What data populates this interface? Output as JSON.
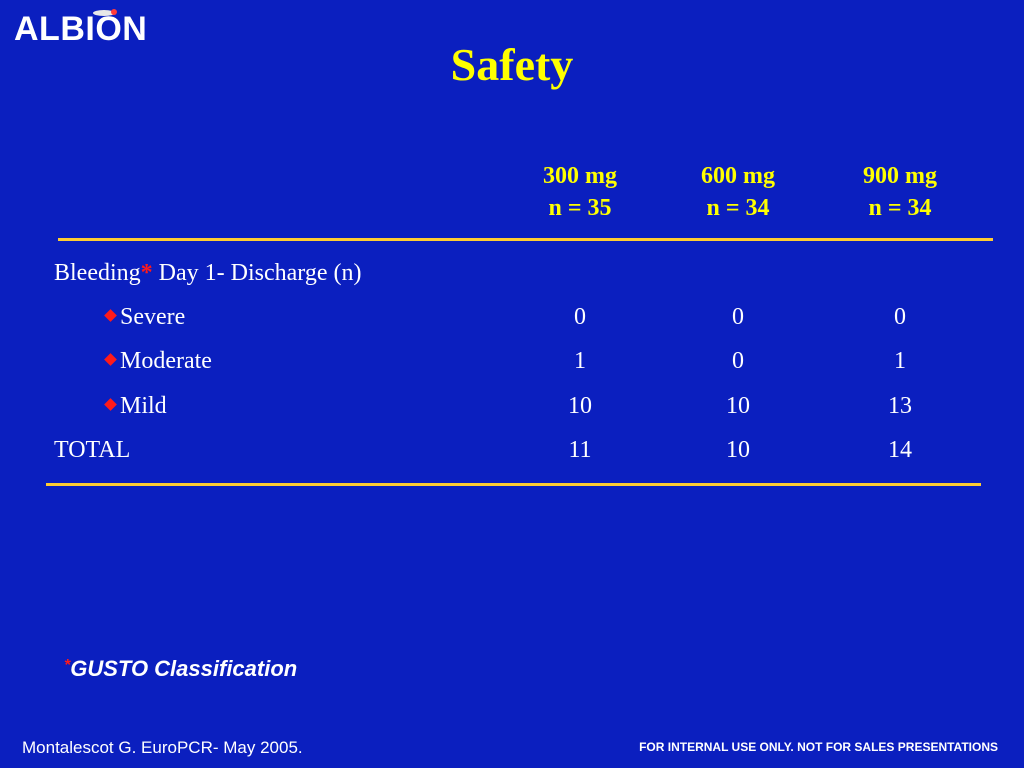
{
  "brand": {
    "logo_text": "ALBION"
  },
  "slide": {
    "title": "Safety"
  },
  "table": {
    "columns": [
      {
        "dose": "300 mg",
        "n": "n = 35"
      },
      {
        "dose": "600 mg",
        "n": "n = 34"
      },
      {
        "dose": "900 mg",
        "n": "n = 34"
      }
    ],
    "section_label": {
      "main": "Bleeding",
      "marker": "*",
      "rest": " Day 1- Discharge (n)"
    },
    "rows": [
      {
        "label": "Severe",
        "values": [
          "0",
          "0",
          "0"
        ]
      },
      {
        "label": "Moderate",
        "values": [
          "1",
          "0",
          "1"
        ]
      },
      {
        "label": "Mild",
        "values": [
          "10",
          "10",
          "13"
        ]
      }
    ],
    "total": {
      "label": "TOTAL",
      "values": [
        "11",
        "10",
        "14"
      ]
    }
  },
  "footnote": {
    "marker": "*",
    "text": "GUSTO Classification"
  },
  "footer": {
    "citation": "Montalescot G. EuroPCR- May 2005.",
    "disclaimer": "FOR INTERNAL USE ONLY. NOT FOR SALES PRESENTATIONS"
  },
  "colors": {
    "background": "#0b1fbf",
    "title": "#ffff00",
    "rule": "#ffcc33",
    "bullet": "#ff1a1a"
  }
}
